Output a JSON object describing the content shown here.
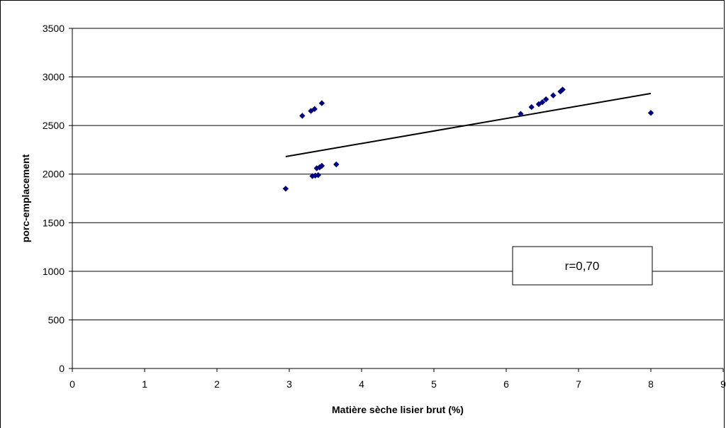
{
  "chart_data": {
    "type": "scatter",
    "title": "",
    "xlabel": "Matière sèche lisier brut (%)",
    "ylabel": "porc-emplacement",
    "xlim": [
      0,
      9
    ],
    "ylim": [
      0,
      3500
    ],
    "x_ticks": [
      "0",
      "1",
      "2",
      "3",
      "4",
      "5",
      "6",
      "7",
      "8",
      "9"
    ],
    "y_ticks": [
      "0",
      "500",
      "1000",
      "1500",
      "2000",
      "2500",
      "3000",
      "3500"
    ],
    "grid": "horizontal",
    "legend": "none",
    "marker_color": "#000080",
    "trendline": {
      "type": "linear",
      "x": [
        2.95,
        8.0
      ],
      "y": [
        2180,
        2830
      ]
    },
    "annotation": "r=0,70",
    "series": [
      {
        "points": [
          [
            2.95,
            1850
          ],
          [
            3.18,
            2600
          ],
          [
            3.3,
            2650
          ],
          [
            3.35,
            2670
          ],
          [
            3.45,
            2730
          ],
          [
            3.32,
            1980
          ],
          [
            3.36,
            1985
          ],
          [
            3.4,
            1990
          ],
          [
            3.38,
            2060
          ],
          [
            3.42,
            2070
          ],
          [
            3.45,
            2085
          ],
          [
            3.65,
            2100
          ],
          [
            6.2,
            2620
          ],
          [
            6.35,
            2690
          ],
          [
            6.45,
            2720
          ],
          [
            6.5,
            2740
          ],
          [
            6.55,
            2770
          ],
          [
            6.65,
            2810
          ],
          [
            6.75,
            2850
          ],
          [
            6.78,
            2870
          ],
          [
            8.0,
            2630
          ]
        ]
      }
    ]
  }
}
